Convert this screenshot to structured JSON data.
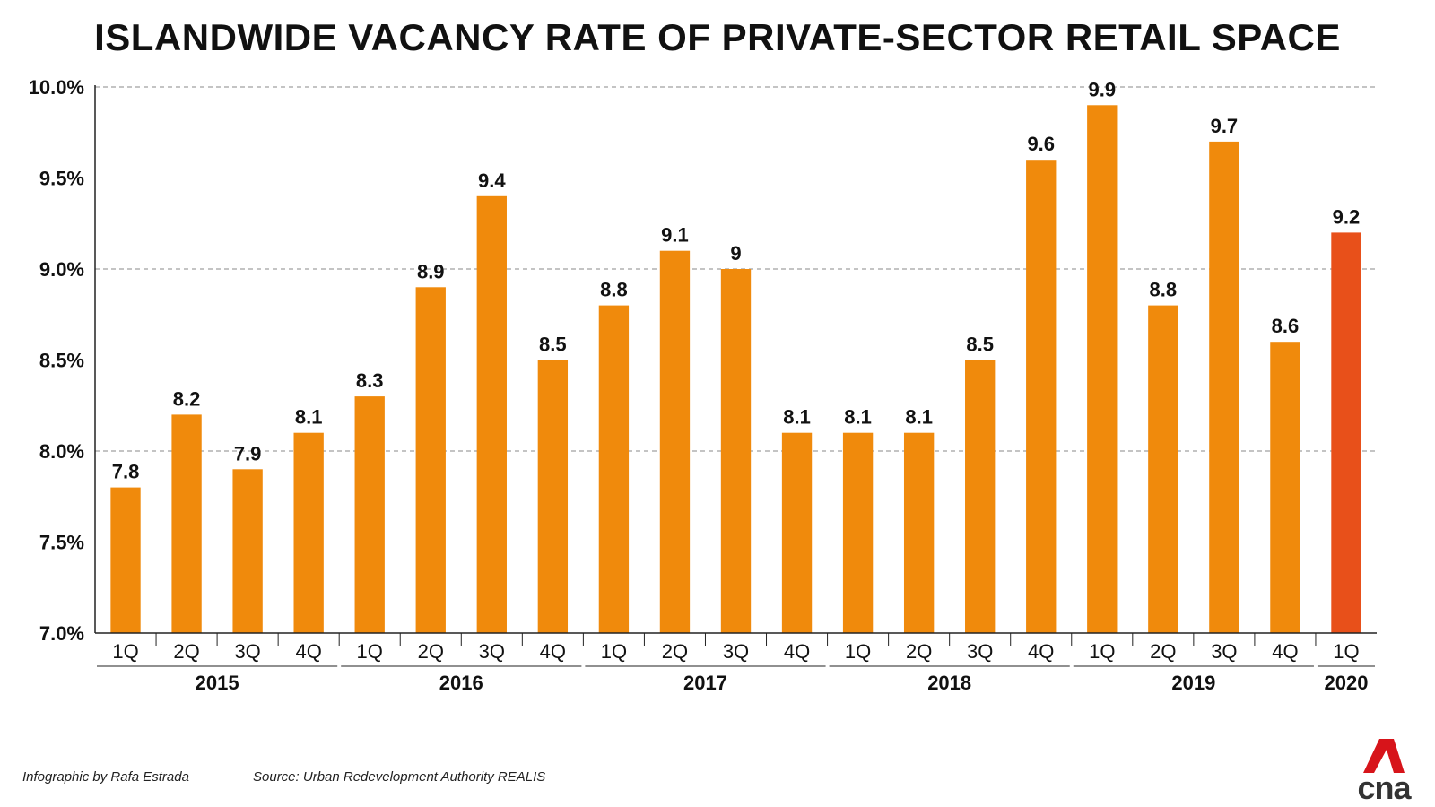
{
  "chart_data": {
    "type": "bar",
    "title": "ISLANDWIDE VACANCY RATE OF PRIVATE-SECTOR RETAIL SPACE",
    "xlabel": "",
    "ylabel": "",
    "ylim": [
      7.0,
      10.0
    ],
    "yticks": [
      "7.0%",
      "7.5%",
      "8.0%",
      "8.5%",
      "9.0%",
      "9.5%",
      "10.0%"
    ],
    "ytick_values": [
      7.0,
      7.5,
      8.0,
      8.5,
      9.0,
      9.5,
      10.0
    ],
    "grid": true,
    "categories": [
      "1Q",
      "2Q",
      "3Q",
      "4Q",
      "1Q",
      "2Q",
      "3Q",
      "4Q",
      "1Q",
      "2Q",
      "3Q",
      "4Q",
      "1Q",
      "2Q",
      "3Q",
      "4Q",
      "1Q",
      "2Q",
      "3Q",
      "4Q",
      "1Q"
    ],
    "values": [
      7.8,
      8.2,
      7.9,
      8.1,
      8.3,
      8.9,
      9.4,
      8.5,
      8.8,
      9.1,
      9.0,
      8.1,
      8.1,
      8.1,
      8.5,
      9.6,
      9.9,
      8.8,
      9.7,
      8.6,
      9.2
    ],
    "value_labels": [
      "7.8",
      "8.2",
      "7.9",
      "8.1",
      "8.3",
      "8.9",
      "9.4",
      "8.5",
      "8.8",
      "9.1",
      "9",
      "8.1",
      "8.1",
      "8.1",
      "8.5",
      "9.6",
      "9.9",
      "8.8",
      "9.7",
      "8.6",
      "9.2"
    ],
    "groups": [
      {
        "label": "2015",
        "count": 4
      },
      {
        "label": "2016",
        "count": 4
      },
      {
        "label": "2017",
        "count": 4
      },
      {
        "label": "2018",
        "count": 4
      },
      {
        "label": "2019",
        "count": 4
      },
      {
        "label": "2020",
        "count": 1
      }
    ],
    "highlight_index": 20,
    "colors": {
      "bar": "#f08a0c",
      "highlight": "#e8501a",
      "grid": "#888888",
      "text": "#111111"
    }
  },
  "footer": {
    "credit": "Infographic by Rafa Estrada",
    "source": "Source: Urban Redevelopment Authority REALIS"
  },
  "logo": {
    "text": "cna",
    "icon": "cna-logo-icon",
    "color": "#d7141a"
  }
}
